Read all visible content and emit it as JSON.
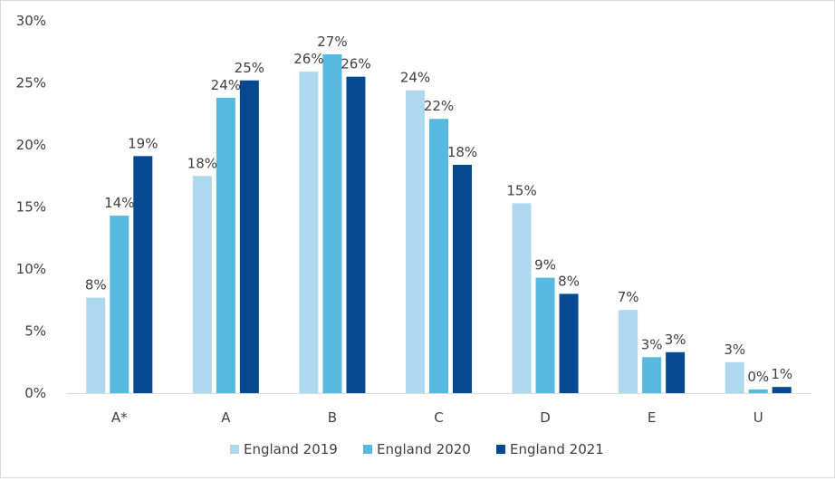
{
  "chart_data": {
    "type": "bar",
    "title": "",
    "xlabel": "",
    "ylabel": "",
    "categories": [
      "A*",
      "A",
      "B",
      "C",
      "D",
      "E",
      "U"
    ],
    "ylim": [
      0,
      30
    ],
    "yticks": [
      0,
      5,
      10,
      15,
      20,
      25,
      30
    ],
    "ytick_labels": [
      "0%",
      "5%",
      "10%",
      "15%",
      "20%",
      "25%",
      "30%"
    ],
    "grid": false,
    "legend_position": "bottom",
    "series": [
      {
        "name": "England 2019",
        "color": "#add8ee",
        "values": [
          7.7,
          17.5,
          25.9,
          24.4,
          15.3,
          6.7,
          2.5
        ],
        "labels": [
          "8%",
          "18%",
          "26%",
          "24%",
          "15%",
          "7%",
          "3%"
        ]
      },
      {
        "name": "England 2020",
        "color": "#57b8e0",
        "values": [
          14.3,
          23.8,
          27.3,
          22.1,
          9.3,
          2.9,
          0.3
        ],
        "labels": [
          "14%",
          "24%",
          "27%",
          "22%",
          "9%",
          "3%",
          "0%"
        ]
      },
      {
        "name": "England 2021",
        "color": "#054a91",
        "values": [
          19.1,
          25.2,
          25.5,
          18.4,
          8.0,
          3.3,
          0.5
        ],
        "labels": [
          "19%",
          "25%",
          "26%",
          "18%",
          "8%",
          "3%",
          "1%"
        ]
      }
    ]
  }
}
